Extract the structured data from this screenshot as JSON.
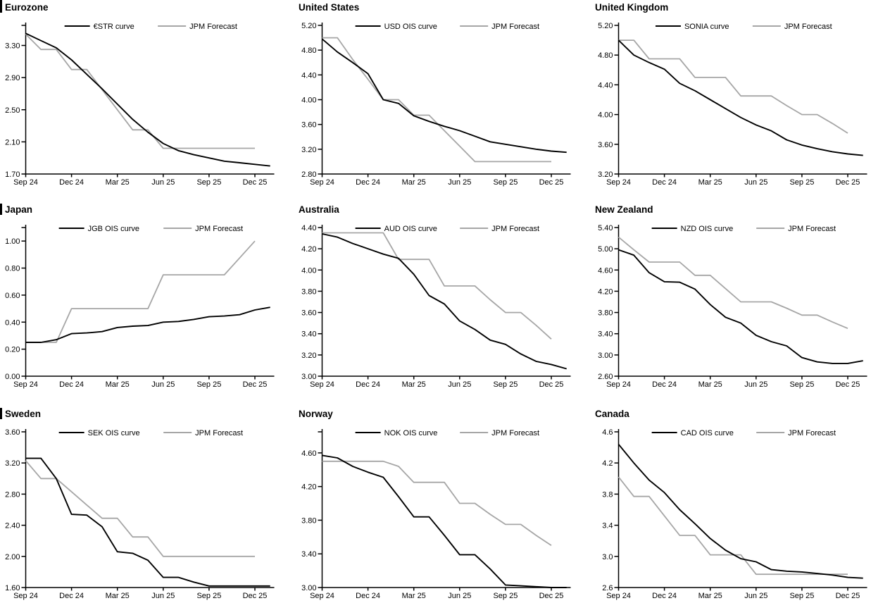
{
  "page": {
    "background": "#ffffff"
  },
  "colors": {
    "ois_line": "#000000",
    "forecast_line": "#a6a6a6",
    "axis": "#000000",
    "text": "#000000"
  },
  "x_axis": {
    "tick_labels": [
      "Sep 24",
      "Dec 24",
      "Mar 25",
      "Jun 25",
      "Sep 25",
      "Dec 25"
    ],
    "tick_months": [
      0,
      3,
      6,
      9,
      12,
      15
    ]
  },
  "legend": {
    "forecast_label": "JPM Forecast"
  },
  "chart_data": [
    {
      "id": "eurozone",
      "type": "line",
      "title": "Eurozone",
      "left_bar": true,
      "series_label": "€STR curve",
      "y_axis_top": 3.55,
      "y_axis_bottom": 1.7,
      "cap_tick": true,
      "y_ticks": [
        {
          "label": "3.30",
          "value": 3.3
        },
        {
          "label": "2.90",
          "value": 2.9
        },
        {
          "label": "2.50",
          "value": 2.5
        },
        {
          "label": "2.10",
          "value": 2.1
        },
        {
          "label": "1.70",
          "value": 1.7
        }
      ],
      "ois_values": [
        3.45,
        3.36,
        3.27,
        3.12,
        2.94,
        2.76,
        2.57,
        2.38,
        2.22,
        2.08,
        1.99,
        1.94,
        1.9,
        1.86,
        1.84,
        1.82,
        1.8
      ],
      "forecast_values": [
        3.44,
        3.25,
        3.25,
        3.0,
        3.0,
        2.75,
        2.5,
        2.25,
        2.25,
        2.02,
        2.02,
        2.02,
        2.02,
        2.02,
        2.02,
        2.02
      ]
    },
    {
      "id": "united-states",
      "type": "line",
      "title": "United States",
      "left_bar": false,
      "series_label": "USD OIS curve",
      "y_axis_top": 5.2,
      "y_axis_bottom": 2.8,
      "cap_tick": false,
      "y_ticks": [
        {
          "label": "5.20",
          "value": 5.2
        },
        {
          "label": "4.80",
          "value": 4.8
        },
        {
          "label": "4.40",
          "value": 4.4
        },
        {
          "label": "4.00",
          "value": 4.0
        },
        {
          "label": "3.60",
          "value": 3.6
        },
        {
          "label": "3.20",
          "value": 3.2
        },
        {
          "label": "2.80",
          "value": 2.8
        }
      ],
      "ois_values": [
        4.98,
        4.77,
        4.6,
        4.42,
        4.0,
        3.94,
        3.74,
        3.65,
        3.57,
        3.5,
        3.41,
        3.32,
        3.28,
        3.24,
        3.2,
        3.17,
        3.15
      ],
      "forecast_values": [
        5.0,
        5.0,
        4.65,
        4.33,
        4.0,
        4.0,
        3.75,
        3.75,
        3.5,
        3.25,
        3.0,
        3.0,
        3.0,
        3.0,
        3.0,
        3.0
      ]
    },
    {
      "id": "united-kingdom",
      "type": "line",
      "title": "United Kingdom",
      "left_bar": false,
      "series_label": "SONIA curve",
      "y_axis_top": 5.2,
      "y_axis_bottom": 3.2,
      "cap_tick": false,
      "y_ticks": [
        {
          "label": "5.20",
          "value": 5.2
        },
        {
          "label": "4.80",
          "value": 4.8
        },
        {
          "label": "4.40",
          "value": 4.4
        },
        {
          "label": "4.00",
          "value": 4.0
        },
        {
          "label": "3.60",
          "value": 3.6
        },
        {
          "label": "3.20",
          "value": 3.2
        }
      ],
      "ois_values": [
        5.0,
        4.8,
        4.7,
        4.61,
        4.42,
        4.32,
        4.2,
        4.08,
        3.96,
        3.86,
        3.78,
        3.66,
        3.59,
        3.54,
        3.5,
        3.47,
        3.45
      ],
      "forecast_values": [
        5.0,
        5.0,
        4.75,
        4.75,
        4.75,
        4.5,
        4.5,
        4.5,
        4.25,
        4.25,
        4.25,
        4.12,
        4.0,
        4.0,
        3.88,
        3.75
      ]
    },
    {
      "id": "japan",
      "type": "line",
      "title": "Japan",
      "left_bar": true,
      "series_label": "JGB OIS curve",
      "y_axis_top": 1.1,
      "y_axis_bottom": 0.0,
      "cap_tick": true,
      "y_ticks": [
        {
          "label": "1.00",
          "value": 1.0
        },
        {
          "label": "0.80",
          "value": 0.8
        },
        {
          "label": "0.60",
          "value": 0.6
        },
        {
          "label": "0.40",
          "value": 0.4
        },
        {
          "label": "0.20",
          "value": 0.2
        },
        {
          "label": "0.00",
          "value": 0.0
        }
      ],
      "ois_values": [
        0.25,
        0.25,
        0.27,
        0.315,
        0.32,
        0.33,
        0.36,
        0.37,
        0.375,
        0.4,
        0.405,
        0.42,
        0.44,
        0.445,
        0.455,
        0.49,
        0.51
      ],
      "forecast_values": [
        0.25,
        0.25,
        0.25,
        0.5,
        0.5,
        0.5,
        0.5,
        0.5,
        0.5,
        0.75,
        0.75,
        0.75,
        0.75,
        0.75,
        0.875,
        1.0
      ]
    },
    {
      "id": "australia",
      "type": "line",
      "title": "Australia",
      "left_bar": false,
      "series_label": "AUD OIS curve",
      "y_axis_top": 4.4,
      "y_axis_bottom": 3.0,
      "cap_tick": false,
      "y_ticks": [
        {
          "label": "4.40",
          "value": 4.4
        },
        {
          "label": "4.20",
          "value": 4.2
        },
        {
          "label": "4.00",
          "value": 4.0
        },
        {
          "label": "3.80",
          "value": 3.8
        },
        {
          "label": "3.60",
          "value": 3.6
        },
        {
          "label": "3.40",
          "value": 3.4
        },
        {
          "label": "3.20",
          "value": 3.2
        },
        {
          "label": "3.00",
          "value": 3.0
        }
      ],
      "ois_values": [
        4.34,
        4.31,
        4.25,
        4.2,
        4.15,
        4.11,
        3.96,
        3.76,
        3.68,
        3.52,
        3.44,
        3.34,
        3.3,
        3.21,
        3.14,
        3.11,
        3.07
      ],
      "forecast_values": [
        4.35,
        4.35,
        4.35,
        4.35,
        4.35,
        4.1,
        4.1,
        4.1,
        3.85,
        3.85,
        3.85,
        3.72,
        3.6,
        3.6,
        3.48,
        3.35
      ]
    },
    {
      "id": "new-zealand",
      "type": "line",
      "title": "New Zealand",
      "left_bar": false,
      "series_label": "NZD OIS curve",
      "y_axis_top": 5.4,
      "y_axis_bottom": 2.6,
      "cap_tick": false,
      "y_ticks": [
        {
          "label": "5.40",
          "value": 5.4
        },
        {
          "label": "5.00",
          "value": 5.0
        },
        {
          "label": "4.60",
          "value": 4.6
        },
        {
          "label": "4.20",
          "value": 4.2
        },
        {
          "label": "3.80",
          "value": 3.8
        },
        {
          "label": "3.40",
          "value": 3.4
        },
        {
          "label": "3.00",
          "value": 3.0
        },
        {
          "label": "2.60",
          "value": 2.6
        }
      ],
      "ois_values": [
        4.98,
        4.88,
        4.55,
        4.38,
        4.37,
        4.24,
        3.95,
        3.71,
        3.6,
        3.37,
        3.25,
        3.17,
        2.95,
        2.87,
        2.84,
        2.84,
        2.89
      ],
      "forecast_values": [
        5.22,
        4.98,
        4.75,
        4.75,
        4.75,
        4.5,
        4.5,
        4.25,
        4.0,
        4.0,
        4.0,
        3.88,
        3.75,
        3.75,
        3.62,
        3.5
      ]
    },
    {
      "id": "sweden",
      "type": "line",
      "title": "Sweden",
      "left_bar": true,
      "series_label": "SEK OIS curve",
      "y_axis_top": 3.6,
      "y_axis_bottom": 1.6,
      "cap_tick": false,
      "y_ticks": [
        {
          "label": "3.60",
          "value": 3.6
        },
        {
          "label": "3.20",
          "value": 3.2
        },
        {
          "label": "2.80",
          "value": 2.8
        },
        {
          "label": "2.40",
          "value": 2.4
        },
        {
          "label": "2.00",
          "value": 2.0
        },
        {
          "label": "1.60",
          "value": 1.6
        }
      ],
      "ois_values": [
        3.26,
        3.26,
        3.0,
        2.54,
        2.53,
        2.38,
        2.06,
        2.04,
        1.95,
        1.73,
        1.73,
        1.67,
        1.62,
        1.62,
        1.62,
        1.62,
        1.62
      ],
      "forecast_values": [
        3.23,
        3.0,
        3.0,
        2.83,
        2.66,
        2.49,
        2.49,
        2.25,
        2.25,
        2.0,
        2.0,
        2.0,
        2.0,
        2.0,
        2.0,
        2.0
      ]
    },
    {
      "id": "norway",
      "type": "line",
      "title": "Norway",
      "left_bar": false,
      "series_label": "NOK OIS curve",
      "y_axis_top": 4.85,
      "y_axis_bottom": 3.0,
      "cap_tick": true,
      "y_ticks": [
        {
          "label": "4.60",
          "value": 4.6
        },
        {
          "label": "4.20",
          "value": 4.2
        },
        {
          "label": "3.80",
          "value": 3.8
        },
        {
          "label": "3.40",
          "value": 3.4
        },
        {
          "label": "3.00",
          "value": 3.0
        }
      ],
      "ois_values": [
        4.57,
        4.54,
        4.44,
        4.37,
        4.31,
        4.08,
        3.84,
        3.84,
        3.62,
        3.39,
        3.39,
        3.22,
        3.03,
        3.02,
        3.01,
        3.0,
        3.0
      ],
      "forecast_values": [
        4.5,
        4.5,
        4.5,
        4.5,
        4.5,
        4.44,
        4.25,
        4.25,
        4.25,
        4.0,
        4.0,
        3.87,
        3.75,
        3.75,
        3.62,
        3.5
      ]
    },
    {
      "id": "canada",
      "type": "line",
      "title": "Canada",
      "left_bar": false,
      "series_label": "CAD OIS curve",
      "y_axis_top": 4.6,
      "y_axis_bottom": 2.6,
      "cap_tick": false,
      "y_ticks": [
        {
          "label": "4.6",
          "value": 4.6
        },
        {
          "label": "4.2",
          "value": 4.2
        },
        {
          "label": "3.8",
          "value": 3.8
        },
        {
          "label": "3.4",
          "value": 3.4
        },
        {
          "label": "3.0",
          "value": 3.0
        },
        {
          "label": "2.6",
          "value": 2.6
        }
      ],
      "ois_values": [
        4.44,
        4.2,
        3.98,
        3.82,
        3.6,
        3.42,
        3.23,
        3.08,
        2.97,
        2.93,
        2.83,
        2.81,
        2.8,
        2.78,
        2.76,
        2.73,
        2.72
      ],
      "forecast_values": [
        4.02,
        3.77,
        3.77,
        3.52,
        3.27,
        3.27,
        3.02,
        3.02,
        3.02,
        2.77,
        2.77,
        2.77,
        2.77,
        2.77,
        2.77,
        2.77
      ]
    }
  ]
}
